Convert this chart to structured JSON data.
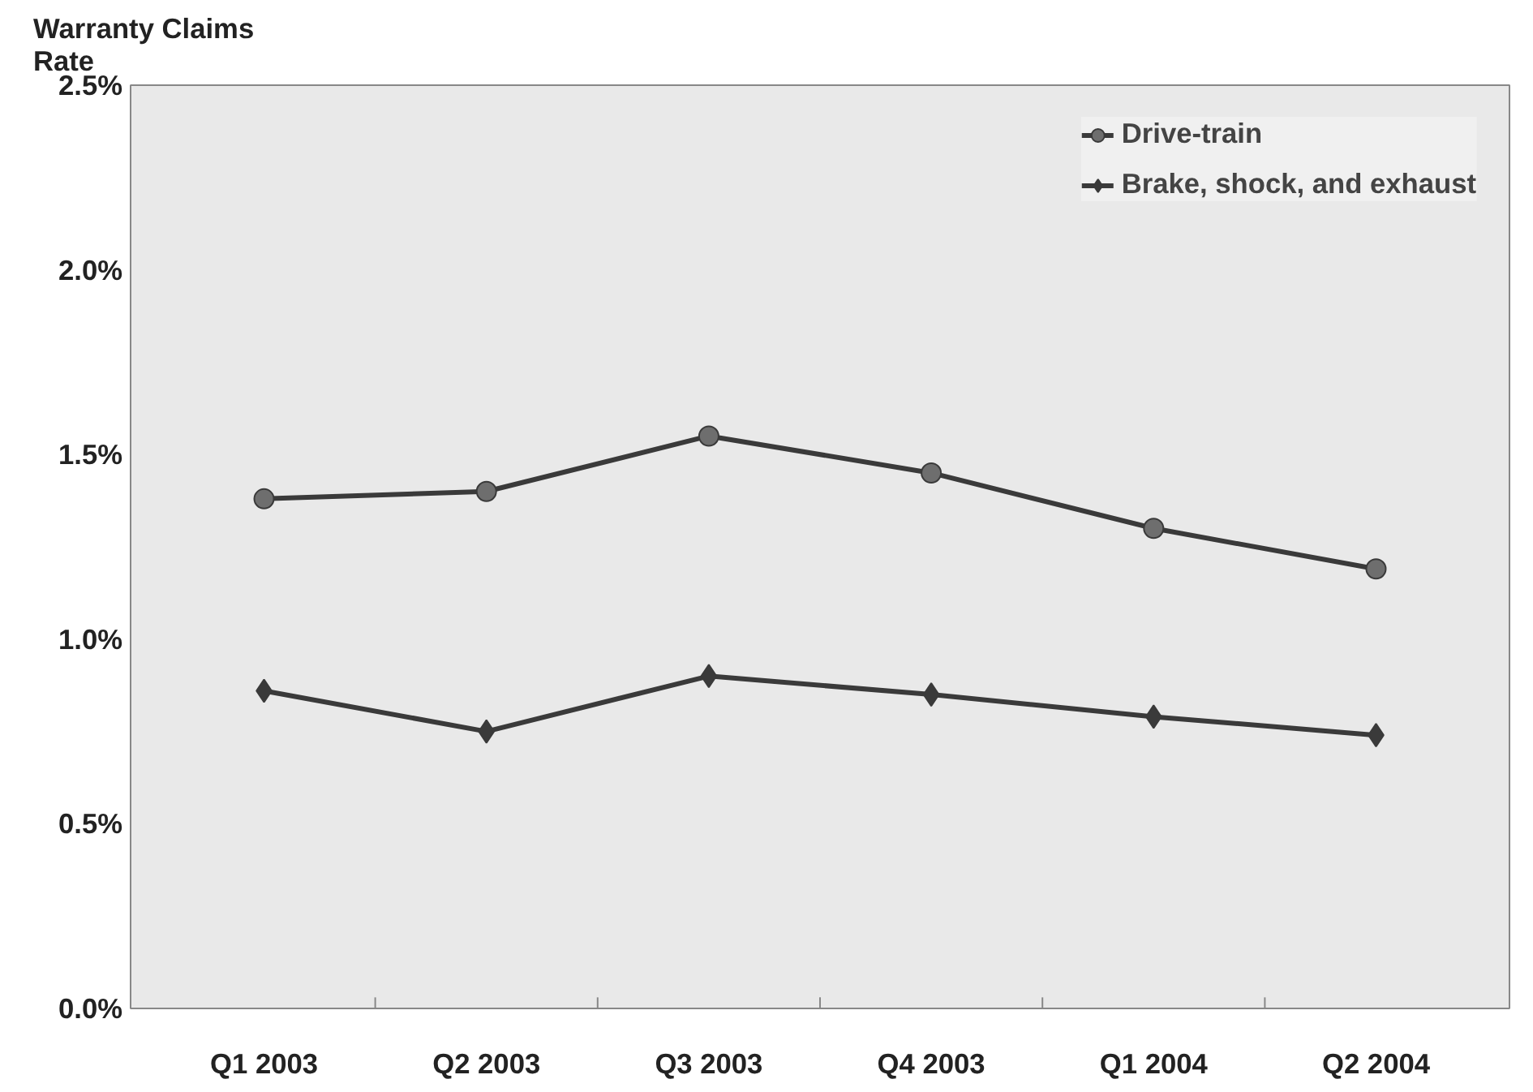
{
  "chart_data": {
    "type": "line",
    "ylabel": "Warranty Claims\nRate",
    "categories": [
      "Q1 2003",
      "Q2 2003",
      "Q3 2003",
      "Q4 2003",
      "Q1 2004",
      "Q2 2004"
    ],
    "series": [
      {
        "name": "Drive-train",
        "color": "#3a3a3a",
        "marker": "circle",
        "values": [
          1.38,
          1.4,
          1.55,
          1.45,
          1.3,
          1.19
        ]
      },
      {
        "name": "Brake, shock, and exhaust",
        "color": "#3a3a3a",
        "marker": "diamond",
        "values": [
          0.86,
          0.75,
          0.9,
          0.85,
          0.79,
          0.74
        ]
      }
    ],
    "ylim": [
      0,
      2.5
    ],
    "yticks": [
      {
        "value": 0,
        "label": "0.0%"
      },
      {
        "value": 0.5,
        "label": "0.5%"
      },
      {
        "value": 1.0,
        "label": "1.0%"
      },
      {
        "value": 1.5,
        "label": "1.5%"
      },
      {
        "value": 2.0,
        "label": "2.0%"
      },
      {
        "value": 2.5,
        "label": "2.5%"
      }
    ],
    "grid": false,
    "legend": "top right"
  }
}
